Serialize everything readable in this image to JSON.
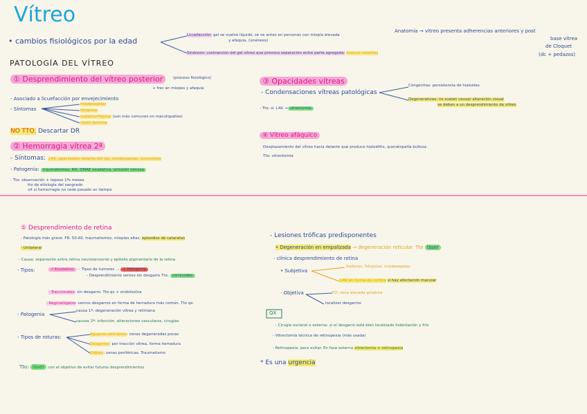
{
  "title": "Vítreo",
  "intro": {
    "cambios": "• cambios fisiológicos por la edad",
    "licuefaccion_label": "Licuefacción:",
    "licuefaccion_text": "gel se vuelve líquido, se ve antes en personas con miopía elevada",
    "licuefaccion_text2": "y afaquia. (sinéresis)",
    "sineresis_label": "Sinéresis",
    "sineresis_text": ": contracción del gel vítreo que provoca separación entre parte agregada:",
    "sineresis_tag": "moscas volantes",
    "anatomia": "Anatomía → vítreo presenta adherencias anteriores y post",
    "anatomia2": "base vítrea",
    "anatomia3": "de Cloquet",
    "anatomia4": "(dc + pedazos)"
  },
  "heading": "PATOLOGÍA DEL VÍTREO",
  "s1": {
    "title": "① Desprendimiento del vítreo posterior",
    "note": "(proceso fisiológico)",
    "note2": "+ frec en miopes y afaquia",
    "asociado": "- Asociado a licuefacción por envejecimiento",
    "sintomas": "- Síntomas",
    "items": [
      "miodesopsias",
      "fotopsias",
      "metamorfopsias",
      "visión borrosa"
    ],
    "items_note": "(son más comunes en maculopatías)",
    "no_tto": "NO TTO.",
    "descartar": "Descartar DR"
  },
  "s2": {
    "title": "② Hemorragia vítrea 2ª",
    "sintomas_label": "- Síntomas:",
    "sintomas": "↓AV, opacidades delante del ojo, miodesopsias, escotomas",
    "patogenia_label": "- Patogenia:",
    "patogenia": "traumatismos, RD, DMAE exudativa, oclusión venosa",
    "tto_label": "- Tto:",
    "tto1": "observación + reposo 1ºs meses",
    "tto2": "tto de etiología del sangrado",
    "tto3": "vit si hemorragia no cede pasado un tiempo"
  },
  "s3": {
    "title": "③ Opacidades vítreas",
    "condensaciones": "- Condensaciones vítreas patológicas",
    "congenitas": "Congénitas: persistencia de hialoides",
    "degenerativas_label": "Degenerativas",
    "degenerativas": ": no suelen causar alteración visual",
    "degenerativas2": "se deben a un desprendimiento de vítreo",
    "tto": "- Tto: si ↓AV →",
    "tto_hl": "vitrectomía"
  },
  "s4": {
    "title": "④ Vítreo afáquico",
    "text": "Desplazamiento del vítreo hacia delante que produce hialoiditis, queratopatía bullosa",
    "tto": "Tto: vitrectomía"
  },
  "s5": {
    "title": "⑤ Desprendimiento de retina",
    "patologia": "- Patología más grave.  FR: 50-60, traumatismos, miopías altas,",
    "patologia_hl": "episodios de cataratas",
    "unilateral": "- Unilateral",
    "causa": "- Causa: separación entre retina neurosensorial y epitelio pigmentario de la retina",
    "tipos": "- Tipos:",
    "exudativo": "• Exudativo",
    "exudativo1": ": - Tipos de tumores ...",
    "exudativo1_tag": "↓ Patogenia",
    "exudativo2": "- Desprendimiento seroso sin desgarro   Tto:",
    "exudativo2_hl": "corticoides",
    "traccionales": "- Traccionales",
    "traccionales_text": ": sin desgarro. Tto qx + endotoxina",
    "regmatogeno": "· Regmatógeno",
    "regmatogeno_text": ": vemos desgarros en forma de herradura más común. Tto qx.",
    "patogenia": "- Patogenia",
    "causa1": "causa 1ª: degeneración vítrea y retiniana",
    "causa2": "causas 2ª: infección, alteraciones vasculares, cirugías",
    "roturas": "- Tipos de roturas:",
    "agujeros_label": "Agujeros retinianos",
    "agujeros": ": zonas degeneradas pocas",
    "desgarros_label": "Desgarros",
    "desgarros": ": por tracción vítrea, forma herradura",
    "dialisis_label": "Diálisis",
    "dialisis": ": zonas periféricas. Traumatismo",
    "tto_label": "Tto:",
    "tto_hl": "láser",
    "tto": "con el objetivo de evitar futuros desprendimientos"
  },
  "s5b": {
    "lesiones": "- Lesiones tróficas predisponentes",
    "degeneracion": "• Degeneración en empalizada",
    "degeneracion2": "→ degeneración reticular.  Tto",
    "degeneracion_hl": "láser",
    "clinica": "- clínica desprendimiento de retina",
    "subjetiva": "• Subjetiva",
    "subj1": "fosfenos, fotopsias, miodesopsias",
    "subj2": "↓AV en forma de cortina",
    "subj2b": "si hay afectación macular",
    "objetiva": "· Objetiva",
    "obj1": "FO: zona elevada grisácea",
    "obj2": "localizar desgarros",
    "qx": "QX",
    "qx1": "- Cirugía escleral o externa: si el desgarro está bien localizado   Indentación y frío",
    "qx2": "- Vitrectomía técnica de retinopexia (más usada)",
    "qx3": "- Retinopexia: para evitar. En fase externa",
    "qx3_hl": "vitrectomía + retinopexia",
    "urgencia": "* Es una",
    "urgencia_hl": "urgencia"
  }
}
